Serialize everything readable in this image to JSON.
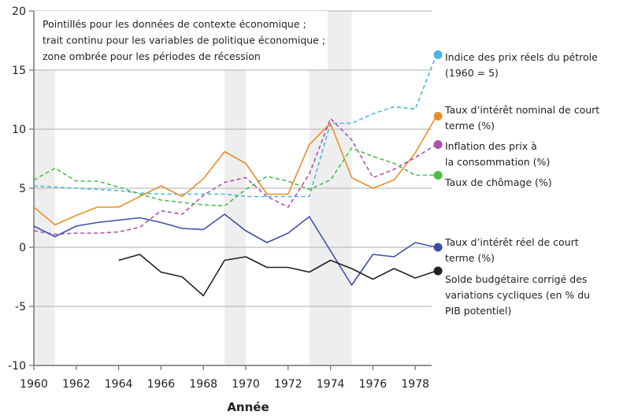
{
  "chart_data": {
    "type": "line",
    "xlabel": "Année",
    "ylabel": "",
    "xlim": [
      1960,
      1979
    ],
    "ylim": [
      -10,
      20
    ],
    "x_ticks": [
      1960,
      1962,
      1964,
      1966,
      1968,
      1970,
      1972,
      1974,
      1976,
      1978
    ],
    "y_ticks": [
      -10,
      -5,
      0,
      5,
      10,
      15,
      20
    ],
    "grid": "horizontal",
    "legend": "right (end-of-line labels)",
    "note": [
      "Pointillés pour les données de contexte économique ;",
      "trait continu pour les variables de politique économique ;",
      "zone ombrée pour les périodes de récession"
    ],
    "recessions": [
      [
        1960,
        1961
      ],
      [
        1969,
        1970
      ],
      [
        1973,
        1975
      ]
    ],
    "recession_color": "#eeeeee",
    "series": [
      {
        "name": "Indice des prix réels du pétrole (1960 = 5)",
        "label_lines": [
          "Indice des prix réels du pétrole",
          "(1960 = 5)"
        ],
        "color": "#4ab4e6",
        "dashed": true,
        "x": [
          1960,
          1961,
          1962,
          1963,
          1964,
          1965,
          1966,
          1967,
          1968,
          1969,
          1970,
          1971,
          1972,
          1973,
          1974,
          1975,
          1976,
          1977,
          1978,
          1979
        ],
        "y": [
          5.2,
          5.1,
          5.0,
          4.9,
          4.8,
          4.6,
          4.5,
          4.5,
          4.5,
          4.5,
          4.3,
          4.3,
          4.3,
          4.3,
          10.5,
          10.5,
          11.3,
          11.9,
          11.7,
          16.3
        ]
      },
      {
        "name": "Taux d’intérêt nominal de court terme (%)",
        "label_lines": [
          "Taux d’intérêt nominal de court",
          "terme (%)"
        ],
        "color": "#e8902a",
        "dashed": false,
        "x": [
          1960,
          1961,
          1962,
          1963,
          1964,
          1965,
          1966,
          1967,
          1968,
          1969,
          1970,
          1971,
          1972,
          1973,
          1974,
          1975,
          1976,
          1977,
          1978,
          1979
        ],
        "y": [
          3.4,
          1.9,
          2.7,
          3.4,
          3.4,
          4.3,
          5.2,
          4.3,
          5.8,
          8.1,
          7.1,
          4.5,
          4.5,
          8.7,
          10.5,
          5.9,
          5.0,
          5.7,
          8.0,
          11.1
        ]
      },
      {
        "name": "Inflation des prix à la consommation (%)",
        "label_lines": [
          "Inflation des prix à",
          "la consommation (%)"
        ],
        "color": "#b04fb0",
        "dashed": true,
        "x": [
          1960,
          1961,
          1962,
          1963,
          1964,
          1965,
          1966,
          1967,
          1968,
          1969,
          1970,
          1971,
          1972,
          1973,
          1974,
          1975,
          1976,
          1977,
          1978,
          1979
        ],
        "y": [
          1.4,
          1.1,
          1.2,
          1.2,
          1.3,
          1.7,
          3.1,
          2.8,
          4.4,
          5.5,
          5.9,
          4.3,
          3.4,
          6.2,
          10.9,
          9.1,
          5.9,
          6.6,
          7.6,
          8.7
        ]
      },
      {
        "name": "Taux de chômage (%)",
        "label_lines": [
          "Taux de chômage (%)"
        ],
        "color": "#4cbc48",
        "dashed": true,
        "x": [
          1960,
          1961,
          1962,
          1963,
          1964,
          1965,
          1966,
          1967,
          1968,
          1969,
          1970,
          1971,
          1972,
          1973,
          1974,
          1975,
          1976,
          1977,
          1978,
          1979
        ],
        "y": [
          5.7,
          6.7,
          5.6,
          5.6,
          5.1,
          4.5,
          4.0,
          3.8,
          3.6,
          3.5,
          4.9,
          6.0,
          5.6,
          4.9,
          5.7,
          8.4,
          7.7,
          7.1,
          6.1,
          6.1
        ]
      },
      {
        "name": "Taux d’intérêt réel de court terme (%)",
        "label_lines": [
          "Taux d’intérêt réel de court",
          "terme (%)"
        ],
        "color": "#3f4fa8",
        "dashed": false,
        "x": [
          1960,
          1961,
          1962,
          1963,
          1964,
          1965,
          1966,
          1967,
          1968,
          1969,
          1970,
          1971,
          1972,
          1973,
          1974,
          1975,
          1976,
          1977,
          1978,
          1979
        ],
        "y": [
          1.8,
          0.9,
          1.8,
          2.1,
          2.3,
          2.5,
          2.1,
          1.6,
          1.5,
          2.8,
          1.4,
          0.4,
          1.2,
          2.6,
          -0.3,
          -3.2,
          -0.6,
          -0.8,
          0.4,
          0.0
        ]
      },
      {
        "name": "Solde budgétaire corrigé des variations cycliques (en % du PIB potentiel)",
        "label_lines": [
          "Solde budgétaire corrigé des",
          "variations cycliques (en % du",
          "PIB potentiel)"
        ],
        "color": "#222222",
        "dashed": false,
        "x": [
          1964,
          1965,
          1966,
          1967,
          1968,
          1969,
          1970,
          1971,
          1972,
          1973,
          1974,
          1975,
          1976,
          1977,
          1978,
          1979
        ],
        "y": [
          -1.1,
          -0.6,
          -2.1,
          -2.5,
          -4.1,
          -1.1,
          -0.8,
          -1.7,
          -1.7,
          -2.1,
          -1.1,
          -1.8,
          -2.7,
          -1.8,
          -2.6,
          -2.0
        ]
      }
    ]
  }
}
